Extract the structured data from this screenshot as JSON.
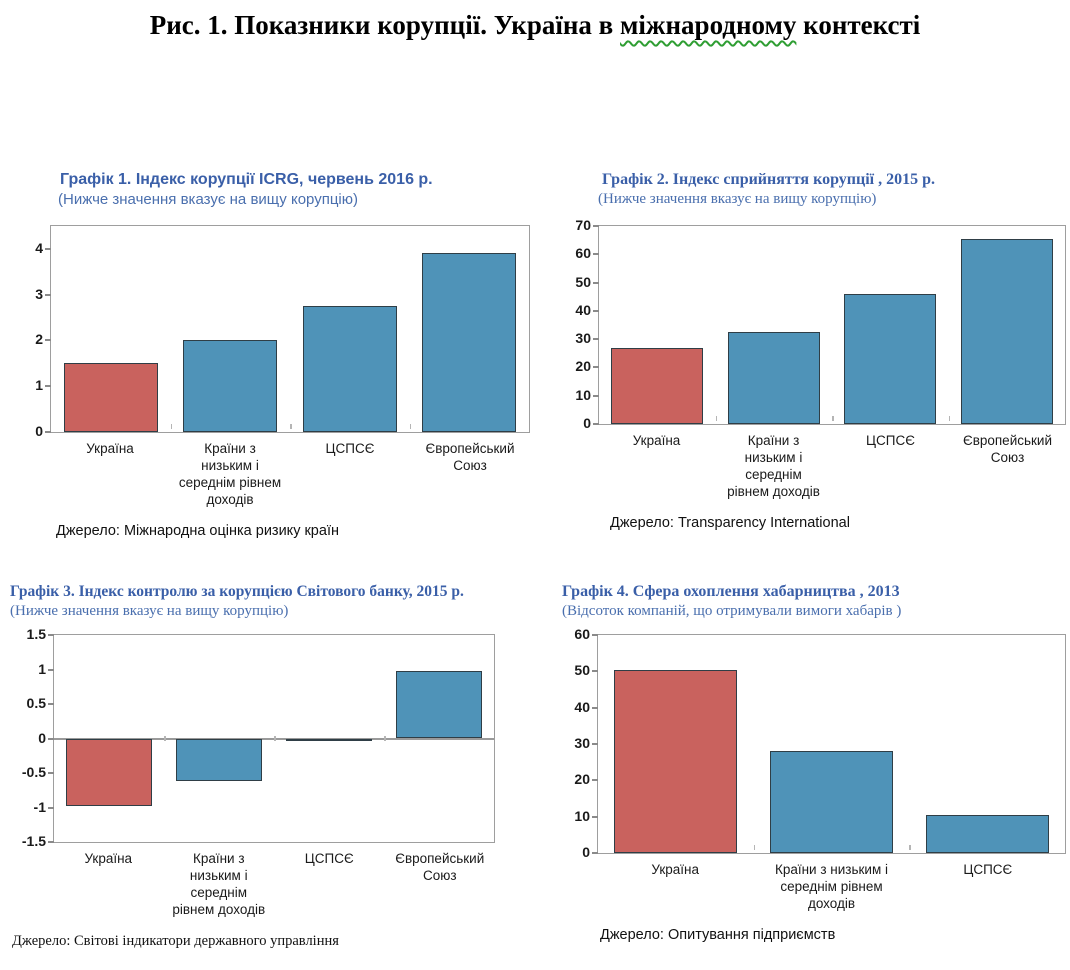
{
  "main_title": {
    "text_before": "Рис. 1. Показники корупції. Україна в ",
    "underlined_word": "міжнародному",
    "text_after": " контексті"
  },
  "palette": {
    "ukraine_red": "#c9625e",
    "comparison_blue": "#4f93b8",
    "bar_border": "#2f3e46",
    "heading_blue": "#3a5fa8",
    "subtitle_blue": "#4a6fae",
    "squiggle_green": "#2f9e33"
  },
  "chart_data": [
    {
      "type": "bar",
      "title": "Графік 1. Індекс корупції ICRG, червень 2016 р.",
      "subtitle": "(Нижче значення вказує на вищу корупцію)",
      "source": "Джерело: Міжнародна оцінка ризику країн",
      "categories": [
        "Україна",
        "Країни з низьким і середнім рівнем доходів",
        "ЦСПСЄ",
        "Європейський Союз"
      ],
      "values": [
        1.5,
        2,
        2.75,
        3.9
      ],
      "colors": [
        "#c9625e",
        "#4f93b8",
        "#4f93b8",
        "#4f93b8"
      ],
      "ylim": [
        0,
        4.5
      ],
      "yticks": [
        0,
        1,
        2,
        3,
        4
      ],
      "grid": false,
      "legend": false
    },
    {
      "type": "bar",
      "title": "Графік 2. Індекс сприйняття корупції , 2015 р.",
      "subtitle": "(Нижче значення вказує на вищу корупцію)",
      "source": "Джерело: Transparency International",
      "categories": [
        "Україна",
        "Країни з низьким і середнім рівнем доходів",
        "ЦСПСЄ",
        "Європейський Союз"
      ],
      "values": [
        27,
        32.5,
        46,
        65.5
      ],
      "colors": [
        "#c9625e",
        "#4f93b8",
        "#4f93b8",
        "#4f93b8"
      ],
      "ylim": [
        0,
        70
      ],
      "yticks": [
        0,
        10,
        20,
        30,
        40,
        50,
        60,
        70
      ],
      "grid": false,
      "legend": false
    },
    {
      "type": "bar",
      "title": "Графік 3. Індекс контролю за корупцією Світового банку, 2015 р.",
      "subtitle": "(Нижче значення вказує на вищу корупцію)",
      "source": "Джерело: Світові індикатори державного управління",
      "categories": [
        "Україна",
        "Країни з низьким і середнім рівнем доходів",
        "ЦСПСЄ",
        "Європейський Союз"
      ],
      "values": [
        -0.98,
        -0.62,
        -0.03,
        0.98
      ],
      "colors": [
        "#c9625e",
        "#4f93b8",
        "#4f93b8",
        "#4f93b8"
      ],
      "ylim": [
        -1.5,
        1.5
      ],
      "yticks": [
        -1.5,
        -1,
        -0.5,
        0,
        0.5,
        1,
        1.5
      ],
      "grid": false,
      "legend": false
    },
    {
      "type": "bar",
      "title": "Графік 4. Сфера охоплення хабарництва , 2013",
      "subtitle": "(Відсоток компаній, що отримували вимоги хабарів )",
      "source": "Джерело: Опитування підприємств",
      "categories": [
        "Україна",
        "Країни з низьким і середнім рівнем доходів",
        "ЦСПСЄ"
      ],
      "values": [
        50.5,
        28,
        10.5
      ],
      "colors": [
        "#c9625e",
        "#4f93b8",
        "#4f93b8"
      ],
      "ylim": [
        0,
        60
      ],
      "yticks": [
        0,
        10,
        20,
        30,
        40,
        50,
        60
      ],
      "grid": false,
      "legend": false
    }
  ]
}
